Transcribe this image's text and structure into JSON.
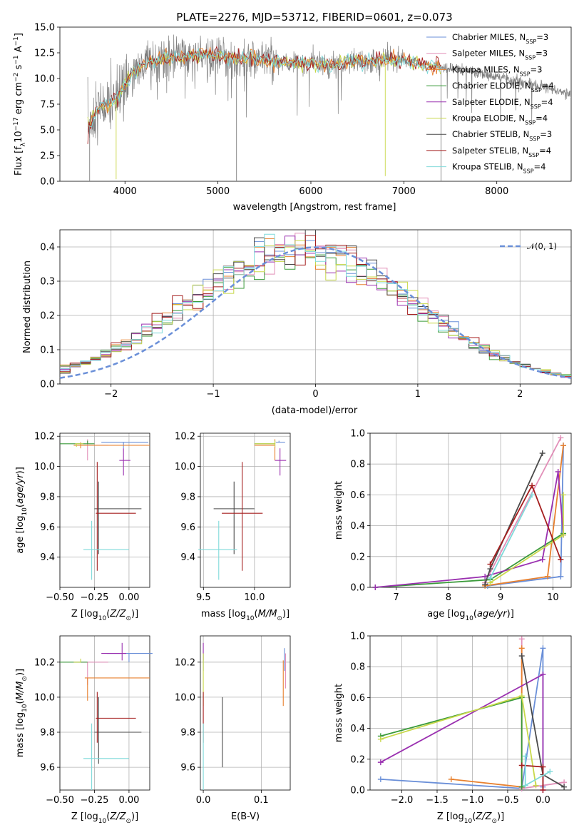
{
  "colors": {
    "chabrier_miles": "#6a8fd8",
    "salpeter_miles": "#e28fb8",
    "kroupa_miles": "#e8812f",
    "chabrier_elodie": "#3a9a3a",
    "salpeter_elodie": "#9a30b0",
    "kroupa_elodie": "#c8d84a",
    "chabrier_stelib": "#4a4a4a",
    "salpeter_stelib": "#a51e1e",
    "kroupa_stelib": "#7fdada",
    "data": "#808080"
  },
  "legend_entries": [
    {
      "key": "chabrier_miles",
      "text": "Chabrier MILES, N",
      "sub": "SSP",
      "tail": "=3"
    },
    {
      "key": "salpeter_miles",
      "text": "Salpeter MILES, N",
      "sub": "SSP",
      "tail": "=3"
    },
    {
      "key": "kroupa_miles",
      "text": "Kroupa MILES, N",
      "sub": "SSP",
      "tail": "=3"
    },
    {
      "key": "chabrier_elodie",
      "text": "Chabrier ELODIE, N",
      "sub": "SSP",
      "tail": "=4"
    },
    {
      "key": "salpeter_elodie",
      "text": "Salpeter ELODIE, N",
      "sub": "SSP",
      "tail": "=4"
    },
    {
      "key": "kroupa_elodie",
      "text": "Kroupa ELODIE, N",
      "sub": "SSP",
      "tail": "=4"
    },
    {
      "key": "chabrier_stelib",
      "text": "Chabrier STELIB, N",
      "sub": "SSP",
      "tail": "=3"
    },
    {
      "key": "salpeter_stelib",
      "text": "Salpeter STELIB, N",
      "sub": "SSP",
      "tail": "=4"
    },
    {
      "key": "kroupa_stelib",
      "text": "Kroupa STELIB, N",
      "sub": "SSP",
      "tail": "=4"
    }
  ],
  "chart_data": [
    {
      "id": "spectrum",
      "type": "line",
      "title": "PLATE=2276, MJD=53712, FIBERID=0601, z=0.073",
      "xlabel": "wavelength [Angstrom, rest frame]",
      "ylabel": "Flux [f_λ10^-17 erg cm^-2 s^-1 A^-1]",
      "xlim": [
        3300,
        8800
      ],
      "ylim": [
        0,
        15
      ],
      "xticks": [
        4000,
        5000,
        6000,
        7000,
        8000
      ],
      "yticks": [
        0.0,
        2.5,
        5.0,
        7.5,
        10.0,
        12.5,
        15.0
      ],
      "legend": "right",
      "continuum_x": [
        3600,
        3700,
        3800,
        3900,
        4000,
        4100,
        4200,
        4400,
        4600,
        4800,
        5000,
        5200,
        5400,
        5600,
        5800,
        6000,
        6200,
        6400,
        6600,
        6800,
        7000,
        7200,
        7400,
        7600,
        7800,
        8000,
        8200,
        8400,
        8600,
        8800
      ],
      "continuum_y": [
        5.0,
        7.0,
        7.4,
        7.9,
        9.5,
        10.6,
        11.4,
        11.9,
        12.1,
        12.3,
        12.2,
        11.9,
        11.9,
        11.7,
        11.4,
        11.6,
        11.2,
        11.6,
        11.7,
        11.7,
        11.8,
        11.3,
        11.1,
        10.8,
        10.5,
        10.2,
        9.8,
        9.4,
        9.0,
        8.4
      ]
    },
    {
      "id": "residuals",
      "type": "histogram",
      "xlabel": "(data-model)/error",
      "ylabel": "Normed distribution",
      "xlim": [
        -2.5,
        2.5
      ],
      "ylim": [
        0,
        0.45
      ],
      "xticks": [
        -2,
        -1,
        0,
        1,
        2
      ],
      "yticks": [
        0.0,
        0.1,
        0.2,
        0.3,
        0.4
      ],
      "legend_label": "𝒩(0, 1)",
      "legend": "top-right",
      "grid": true
    },
    {
      "id": "age_vs_Z",
      "type": "errorbar",
      "xlabel": "Z [log10(Z/Z⊙)]",
      "ylabel": "age  [log10(age/yr)]",
      "xlim": [
        -0.5,
        0.15
      ],
      "ylim": [
        9.2,
        10.22
      ],
      "xticks": [
        -0.5,
        -0.25,
        0.0
      ],
      "xticklabels": [
        "−0.50",
        "−0.25",
        "0.00"
      ],
      "yticks": [
        9.4,
        9.6,
        9.8,
        10.0,
        10.2
      ],
      "grid": true,
      "points": [
        {
          "k": "chabrier_miles",
          "x": -0.04,
          "xerr": [
            0.16,
            0.18
          ],
          "y": 10.16,
          "yerr": [
            0.04,
            0.0
          ]
        },
        {
          "k": "salpeter_miles",
          "x": -0.3,
          "xerr": [
            0.1,
            0.15
          ],
          "y": 10.14,
          "yerr": [
            0.1,
            0.04
          ]
        },
        {
          "k": "kroupa_miles",
          "x": -0.35,
          "xerr": [
            0.05,
            0.5
          ],
          "y": 10.14,
          "yerr": [
            0.02,
            0.02
          ]
        },
        {
          "k": "chabrier_elodie",
          "x": -0.3,
          "xerr": [
            0.2,
            0.05
          ],
          "y": 10.15,
          "yerr": [
            0.0,
            0.02
          ]
        },
        {
          "k": "salpeter_elodie",
          "x": -0.04,
          "xerr": [
            0.03,
            0.05
          ],
          "y": 10.04,
          "yerr": [
            0.1,
            0.08
          ]
        },
        {
          "k": "kroupa_elodie",
          "x": -0.38,
          "xerr": [
            0.01,
            0.05
          ],
          "y": 10.15,
          "yerr": [
            0.02,
            0.0
          ]
        },
        {
          "k": "chabrier_stelib",
          "x": -0.22,
          "xerr": [
            0.03,
            0.31
          ],
          "y": 9.72,
          "yerr": [
            0.3,
            0.18
          ]
        },
        {
          "k": "salpeter_stelib",
          "x": -0.23,
          "xerr": [
            0.01,
            0.28
          ],
          "y": 9.69,
          "yerr": [
            0.38,
            0.34
          ]
        },
        {
          "k": "kroupa_stelib",
          "x": -0.27,
          "xerr": [
            0.06,
            0.27
          ],
          "y": 9.45,
          "yerr": [
            0.2,
            0.19
          ]
        }
      ]
    },
    {
      "id": "age_vs_mass",
      "type": "errorbar",
      "xlabel": "mass [log10(M/M⊙)]",
      "ylabel": "",
      "xlim": [
        9.47,
        10.35
      ],
      "ylim": [
        9.2,
        10.22
      ],
      "xticks": [
        9.5,
        10.0
      ],
      "xticklabels": [
        "9.5",
        "10.0"
      ],
      "yticks": [
        9.4,
        9.6,
        9.8,
        10.0,
        10.2
      ],
      "grid": true,
      "points": [
        {
          "k": "chabrier_miles",
          "x": 10.24,
          "xerr": [
            0.03,
            0.06
          ],
          "y": 10.16,
          "yerr": [
            0.0,
            0.01
          ]
        },
        {
          "k": "salpeter_miles",
          "x": 10.2,
          "xerr": [
            0.2,
            0.0
          ],
          "y": 10.14,
          "yerr": [
            0.02,
            0.02
          ]
        },
        {
          "k": "kroupa_miles",
          "x": 10.2,
          "xerr": [
            0.2,
            0.0
          ],
          "y": 10.14,
          "yerr": [
            0.1,
            0.04
          ]
        },
        {
          "k": "chabrier_elodie",
          "x": 10.2,
          "xerr": [
            0.2,
            0.0
          ],
          "y": 10.15,
          "yerr": [
            0.0,
            0.02
          ]
        },
        {
          "k": "salpeter_elodie",
          "x": 10.25,
          "xerr": [
            0.05,
            0.06
          ],
          "y": 10.04,
          "yerr": [
            0.1,
            0.08
          ]
        },
        {
          "k": "kroupa_elodie",
          "x": 10.2,
          "xerr": [
            0.2,
            0.0
          ],
          "y": 10.15,
          "yerr": [
            0.02,
            0.02
          ]
        },
        {
          "k": "chabrier_stelib",
          "x": 9.8,
          "xerr": [
            0.2,
            0.2
          ],
          "y": 9.72,
          "yerr": [
            0.3,
            0.18
          ]
        },
        {
          "k": "salpeter_stelib",
          "x": 9.88,
          "xerr": [
            0.2,
            0.2
          ],
          "y": 9.69,
          "yerr": [
            0.38,
            0.34
          ]
        },
        {
          "k": "kroupa_stelib",
          "x": 9.65,
          "xerr": [
            0.2,
            0.18
          ],
          "y": 9.45,
          "yerr": [
            0.2,
            0.19
          ]
        }
      ]
    },
    {
      "id": "weight_vs_age",
      "type": "line",
      "xlabel": "age  [log10(age/yr)]",
      "ylabel": "mass weight",
      "xlim": [
        6.5,
        10.35
      ],
      "ylim": [
        0,
        1
      ],
      "xticks": [
        7,
        8,
        9,
        10
      ],
      "xticklabels": [
        "7",
        "8",
        "9",
        "10"
      ],
      "yticks": [
        0.0,
        0.2,
        0.4,
        0.6,
        0.8,
        1.0
      ],
      "grid": true,
      "series": [
        {
          "k": "chabrier_miles",
          "x": [
            8.75,
            10.15,
            10.2
          ],
          "y": [
            0.01,
            0.07,
            0.92
          ]
        },
        {
          "k": "salpeter_miles",
          "x": [
            8.7,
            10.15
          ],
          "y": [
            0.03,
            0.97
          ]
        },
        {
          "k": "kroupa_miles",
          "x": [
            8.7,
            9.9,
            10.2
          ],
          "y": [
            0.01,
            0.07,
            0.92
          ]
        },
        {
          "k": "chabrier_elodie",
          "x": [
            6.6,
            8.8,
            10.2
          ],
          "y": [
            0.0,
            0.05,
            0.35
          ]
        },
        {
          "k": "salpeter_elodie",
          "x": [
            6.6,
            8.7,
            9.8,
            10.1,
            10.2
          ],
          "y": [
            0.0,
            0.07,
            0.18,
            0.75,
            0.34
          ]
        },
        {
          "k": "kroupa_elodie",
          "x": [
            8.8,
            10.2,
            10.2
          ],
          "y": [
            0.03,
            0.34,
            0.6
          ]
        },
        {
          "k": "chabrier_stelib",
          "x": [
            8.7,
            8.8,
            9.8
          ],
          "y": [
            0.02,
            0.12,
            0.87
          ]
        },
        {
          "k": "salpeter_stelib",
          "x": [
            8.8,
            9.6,
            10.15
          ],
          "y": [
            0.15,
            0.66,
            0.18
          ]
        },
        {
          "k": "kroupa_stelib",
          "x": [
            8.8,
            9.6
          ],
          "y": [
            0.06,
            0.6
          ]
        }
      ]
    },
    {
      "id": "mass_vs_Z",
      "type": "errorbar",
      "xlabel": "Z [log10(Z/Z⊙)]",
      "ylabel": "mass [log10(M/M⊙)]",
      "xlim": [
        -0.5,
        0.15
      ],
      "ylim": [
        9.47,
        10.35
      ],
      "xticks": [
        -0.5,
        -0.25,
        0.0
      ],
      "xticklabels": [
        "−0.50",
        "−0.25",
        "0.00"
      ],
      "yticks": [
        9.6,
        9.8,
        10.0,
        10.2
      ],
      "grid": true,
      "points": [
        {
          "k": "chabrier_miles",
          "x": 0.0,
          "xerr": [
            0.16,
            0.17
          ],
          "y": 10.25,
          "yerr": [
            0.05,
            0.0
          ]
        },
        {
          "k": "salpeter_miles",
          "x": -0.3,
          "xerr": [
            0.1,
            0.15
          ],
          "y": 10.2,
          "yerr": [
            0.13,
            0.0
          ]
        },
        {
          "k": "kroupa_miles",
          "x": -0.3,
          "xerr": [
            0.02,
            0.45
          ],
          "y": 10.11,
          "yerr": [
            0.13,
            0.0
          ]
        },
        {
          "k": "chabrier_elodie",
          "x": -0.3,
          "xerr": [
            0.2,
            0.0
          ],
          "y": 10.2,
          "yerr": [
            0.0,
            0.0
          ]
        },
        {
          "k": "salpeter_elodie",
          "x": -0.05,
          "xerr": [
            0.15,
            0.03
          ],
          "y": 10.25,
          "yerr": [
            0.04,
            0.06
          ]
        },
        {
          "k": "kroupa_elodie",
          "x": -0.35,
          "xerr": [
            0.05,
            0.0
          ],
          "y": 10.2,
          "yerr": [
            0.0,
            0.02
          ]
        },
        {
          "k": "chabrier_stelib",
          "x": -0.22,
          "xerr": [
            0.03,
            0.31
          ],
          "y": 9.8,
          "yerr": [
            0.18,
            0.2
          ]
        },
        {
          "k": "salpeter_stelib",
          "x": -0.23,
          "xerr": [
            0.01,
            0.28
          ],
          "y": 9.88,
          "yerr": [
            0.14,
            0.15
          ]
        },
        {
          "k": "kroupa_stelib",
          "x": -0.27,
          "xerr": [
            0.06,
            0.27
          ],
          "y": 9.65,
          "yerr": [
            0.18,
            0.2
          ]
        }
      ]
    },
    {
      "id": "mass_vs_EBV",
      "type": "errorbar",
      "xlabel": "E(B-V)",
      "ylabel": "",
      "xlim": [
        -0.005,
        0.15
      ],
      "ylim": [
        9.47,
        10.35
      ],
      "xticks": [
        0.0,
        0.1
      ],
      "xticklabels": [
        "0.0",
        "0.1"
      ],
      "yticks": [
        9.6,
        9.8,
        10.0,
        10.2
      ],
      "grid": true,
      "points": [
        {
          "k": "chabrier_miles",
          "x": 0.0,
          "xerr": [
            0,
            0
          ],
          "y": 10.2,
          "yerr": [
            0.05,
            0.05
          ]
        },
        {
          "k": "salpeter_elodie",
          "x": 0.0,
          "xerr": [
            0,
            0
          ],
          "y": 10.25,
          "yerr": [
            0.04,
            0.06
          ]
        },
        {
          "k": "kroupa_elodie",
          "x": 0.0,
          "xerr": [
            0,
            0
          ],
          "y": 10.1,
          "yerr": [
            0.15,
            0.15
          ]
        },
        {
          "k": "salpeter_stelib",
          "x": 0.0,
          "xerr": [
            0,
            0
          ],
          "y": 9.88,
          "yerr": [
            0.14,
            0.15
          ]
        },
        {
          "k": "kroupa_stelib",
          "x": 0.0,
          "xerr": [
            0,
            0
          ],
          "y": 9.65,
          "yerr": [
            0.18,
            0.2
          ]
        },
        {
          "k": "chabrier_stelib",
          "x": 0.033,
          "xerr": [
            0,
            0
          ],
          "y": 9.8,
          "yerr": [
            0.2,
            0.2
          ]
        },
        {
          "k": "kroupa_miles",
          "x": 0.138,
          "xerr": [
            0,
            0
          ],
          "y": 10.11,
          "yerr": [
            0.16,
            0.1
          ]
        },
        {
          "k": "salpeter_miles",
          "x": 0.142,
          "xerr": [
            0,
            0
          ],
          "y": 10.15,
          "yerr": [
            0.1,
            0.1
          ]
        },
        {
          "k": "chabrier_miles",
          "x": 0.14,
          "xerr": [
            0,
            0
          ],
          "y": 10.2,
          "yerr": [
            0.05,
            0.08
          ]
        }
      ]
    },
    {
      "id": "weight_vs_Z",
      "type": "line",
      "xlabel": "Z [log10(Z/Z⊙)]",
      "ylabel": "mass weight",
      "xlim": [
        -2.45,
        0.4
      ],
      "ylim": [
        0,
        1
      ],
      "xticks": [
        -2.0,
        -1.5,
        -1.0,
        -0.5,
        0.0
      ],
      "xticklabels": [
        "−2.0",
        "−1.5",
        "−1.0",
        "−0.5",
        "0.0"
      ],
      "yticks": [
        0.0,
        0.2,
        0.4,
        0.6,
        0.8,
        1.0
      ],
      "grid": true,
      "series": [
        {
          "k": "chabrier_miles",
          "x": [
            -2.3,
            -0.3,
            0.0,
            0.0
          ],
          "y": [
            0.07,
            0.01,
            0.92,
            0.02
          ]
        },
        {
          "k": "salpeter_miles",
          "x": [
            -0.3,
            -0.3,
            0.3
          ],
          "y": [
            0.98,
            0.01,
            0.05
          ]
        },
        {
          "k": "kroupa_miles",
          "x": [
            -1.3,
            -0.3,
            -0.3
          ],
          "y": [
            0.07,
            0.02,
            0.92
          ]
        },
        {
          "k": "chabrier_elodie",
          "x": [
            -2.3,
            -0.3,
            -0.3
          ],
          "y": [
            0.35,
            0.6,
            0.02
          ]
        },
        {
          "k": "salpeter_elodie",
          "x": [
            -2.3,
            0.0,
            0.0
          ],
          "y": [
            0.18,
            0.75,
            0.0
          ]
        },
        {
          "k": "kroupa_elodie",
          "x": [
            -2.3,
            -0.3,
            -0.1
          ],
          "y": [
            0.33,
            0.61,
            0.03
          ]
        },
        {
          "k": "chabrier_stelib",
          "x": [
            -0.3,
            0.0,
            0.3
          ],
          "y": [
            0.87,
            0.1,
            0.02
          ]
        },
        {
          "k": "salpeter_stelib",
          "x": [
            -0.3,
            0.0,
            0.0
          ],
          "y": [
            0.16,
            0.15,
            0.0
          ]
        },
        {
          "k": "kroupa_stelib",
          "x": [
            -0.25,
            -0.25,
            0.1
          ],
          "y": [
            0.22,
            0.03,
            0.12
          ]
        }
      ]
    }
  ]
}
